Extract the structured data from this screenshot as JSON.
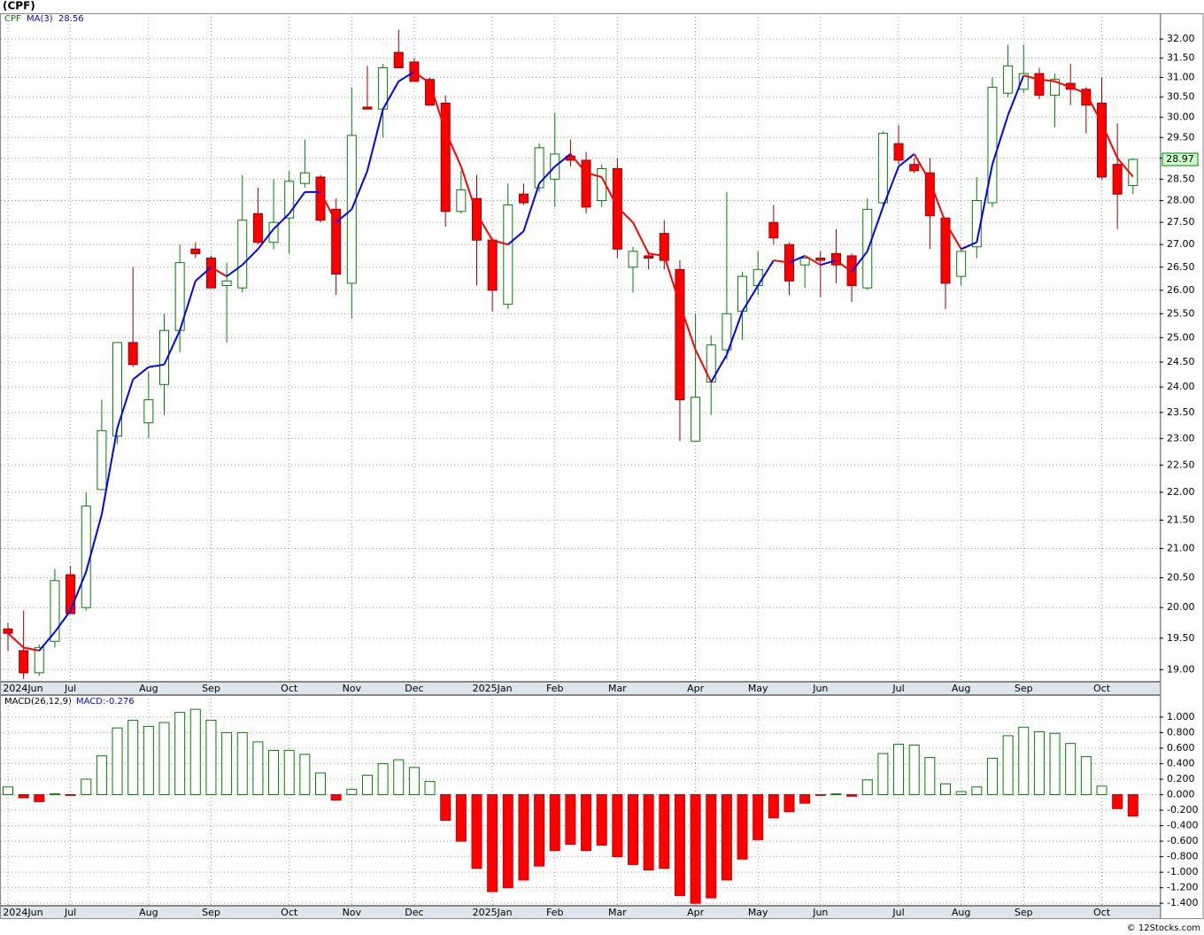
{
  "title": "(CPF)",
  "footer": "© 12Stocks.com",
  "chart_data": [
    {
      "type": "candlestick",
      "symbol": "CPF",
      "categories": [
        "2024Jun",
        null,
        null,
        null,
        "Jul",
        null,
        null,
        null,
        null,
        "Aug",
        null,
        null,
        null,
        "Sep",
        null,
        null,
        null,
        null,
        "Oct",
        null,
        null,
        null,
        "Nov",
        null,
        null,
        null,
        "Dec",
        null,
        null,
        null,
        null,
        "2025Jan",
        null,
        null,
        null,
        "Feb",
        null,
        null,
        null,
        "Mar",
        null,
        null,
        null,
        null,
        "Apr",
        null,
        null,
        null,
        "May",
        null,
        null,
        null,
        "Jun",
        null,
        null,
        null,
        null,
        "Jul",
        null,
        null,
        null,
        "Aug",
        null,
        null,
        null,
        "Sep",
        null,
        null,
        null,
        null,
        "Oct",
        null,
        null
      ],
      "open": [
        19.65,
        19.3,
        18.95,
        19.45,
        20.55,
        20.0,
        22.05,
        23.05,
        24.9,
        23.3,
        24.05,
        25.15,
        26.9,
        26.7,
        26.1,
        26.05,
        27.7,
        27.05,
        27.6,
        28.4,
        28.55,
        27.8,
        26.15,
        30.25,
        30.2,
        31.65,
        31.4,
        30.95,
        30.35,
        27.75,
        28.05,
        27.1,
        25.7,
        28.15,
        28.3,
        28.5,
        29.05,
        28.95,
        28.0,
        28.75,
        26.5,
        26.75,
        27.25,
        26.45,
        22.95,
        24.1,
        24.75,
        25.55,
        26.1,
        27.5,
        27.0,
        26.55,
        26.7,
        26.8,
        26.75,
        26.05,
        27.95,
        29.35,
        28.85,
        28.65,
        27.6,
        26.3,
        26.95,
        27.95,
        30.6,
        30.7,
        31.1,
        30.55,
        30.85,
        30.7,
        30.35,
        28.85,
        28.35
      ],
      "high": [
        19.75,
        19.95,
        19.4,
        20.65,
        20.7,
        22.0,
        23.75,
        24.9,
        26.5,
        24.3,
        25.5,
        27.0,
        27.05,
        26.75,
        26.6,
        28.6,
        28.3,
        28.5,
        28.7,
        29.45,
        28.6,
        28.05,
        30.75,
        31.3,
        31.35,
        32.25,
        31.5,
        31.0,
        30.55,
        28.7,
        28.6,
        27.15,
        28.4,
        28.4,
        29.35,
        30.1,
        29.45,
        29.15,
        28.85,
        29.0,
        26.95,
        26.85,
        27.55,
        26.65,
        25.5,
        25.05,
        28.2,
        26.4,
        26.85,
        27.9,
        27.05,
        26.7,
        26.85,
        27.35,
        26.8,
        28.05,
        29.65,
        29.8,
        29.0,
        29.0,
        27.6,
        26.95,
        28.55,
        31.0,
        31.85,
        31.85,
        31.25,
        31.1,
        31.35,
        30.75,
        31.0,
        29.85,
        29.0
      ],
      "low": [
        19.3,
        18.85,
        18.9,
        19.35,
        19.9,
        19.95,
        22.05,
        22.9,
        24.4,
        23.0,
        23.45,
        24.7,
        26.7,
        26.05,
        24.9,
        25.95,
        27.0,
        26.9,
        26.8,
        28.3,
        27.5,
        25.9,
        25.4,
        30.2,
        29.5,
        31.25,
        30.9,
        30.3,
        27.4,
        27.7,
        26.1,
        25.55,
        25.6,
        27.9,
        28.2,
        27.85,
        28.8,
        27.7,
        27.85,
        26.7,
        25.95,
        26.45,
        26.45,
        22.95,
        22.95,
        23.45,
        24.55,
        24.95,
        25.9,
        27.0,
        25.9,
        26.05,
        25.85,
        26.15,
        25.75,
        26.0,
        27.9,
        28.85,
        28.65,
        26.9,
        25.6,
        26.1,
        26.7,
        27.85,
        30.5,
        30.6,
        30.45,
        29.75,
        30.3,
        29.6,
        28.5,
        27.35,
        28.15
      ],
      "close": [
        19.58,
        18.95,
        19.35,
        20.45,
        19.9,
        21.75,
        23.15,
        24.9,
        24.45,
        23.75,
        25.15,
        26.6,
        26.8,
        26.05,
        26.2,
        27.55,
        27.05,
        27.5,
        28.45,
        28.65,
        27.55,
        26.35,
        29.55,
        30.2,
        31.25,
        31.25,
        30.9,
        30.3,
        27.75,
        28.25,
        27.1,
        26.0,
        27.9,
        27.95,
        29.25,
        29.1,
        28.95,
        27.85,
        28.75,
        26.9,
        26.85,
        26.7,
        26.65,
        23.75,
        23.8,
        24.85,
        25.5,
        26.3,
        26.45,
        27.15,
        26.2,
        26.7,
        26.65,
        26.55,
        26.1,
        27.8,
        29.6,
        28.95,
        28.7,
        27.65,
        26.15,
        26.85,
        28.0,
        30.75,
        31.3,
        31.1,
        30.55,
        30.95,
        30.7,
        30.3,
        28.55,
        28.15,
        28.97
      ],
      "up_color": "#008000",
      "down_color": "#ff0000",
      "series": [
        {
          "name": "MA(3)",
          "color": "#0000ff",
          "down_color": "#ff0000",
          "values": [
            19.58,
            19.35,
            19.3,
            19.6,
            19.95,
            20.6,
            21.6,
            23.2,
            24.15,
            24.4,
            24.45,
            25.15,
            26.2,
            26.5,
            26.3,
            26.55,
            26.9,
            27.35,
            27.7,
            28.2,
            28.2,
            27.5,
            27.8,
            28.7,
            30.2,
            30.9,
            31.15,
            30.85,
            29.65,
            28.8,
            27.7,
            27.1,
            27.0,
            27.3,
            28.4,
            28.8,
            29.1,
            28.65,
            28.55,
            27.85,
            27.5,
            26.8,
            26.75,
            25.7,
            24.75,
            24.1,
            24.65,
            25.55,
            26.1,
            26.65,
            26.6,
            26.75,
            26.55,
            26.65,
            26.4,
            26.85,
            27.85,
            28.8,
            29.1,
            28.45,
            27.5,
            26.9,
            27.05,
            28.85,
            30.05,
            31.05,
            30.95,
            30.9,
            30.75,
            30.6,
            29.85,
            29.0,
            28.56
          ]
        }
      ],
      "ma_last_label": "28.56",
      "last_label": "28.97",
      "log": true,
      "grid": true,
      "ylim": [
        18.81,
        32.69
      ],
      "yticks": [
        {
          "value": 19,
          "label": "19.00"
        },
        {
          "value": 19.5,
          "label": "19.50"
        },
        {
          "value": 20,
          "label": "20.00"
        },
        {
          "value": 20.5,
          "label": "20.50"
        },
        {
          "value": 21,
          "label": "21.00"
        },
        {
          "value": 21.5,
          "label": "21.50"
        },
        {
          "value": 22,
          "label": "22.00"
        },
        {
          "value": 22.5,
          "label": "22.50"
        },
        {
          "value": 23,
          "label": "23.00"
        },
        {
          "value": 23.5,
          "label": "23.50"
        },
        {
          "value": 24,
          "label": "24.00"
        },
        {
          "value": 24.5,
          "label": "24.50"
        },
        {
          "value": 25,
          "label": "25.00"
        },
        {
          "value": 25.5,
          "label": "25.50"
        },
        {
          "value": 26,
          "label": "26.00"
        },
        {
          "value": 26.5,
          "label": "26.50"
        },
        {
          "value": 27,
          "label": "27.00"
        },
        {
          "value": 27.5,
          "label": "27.50"
        },
        {
          "value": 28,
          "label": "28.00"
        },
        {
          "value": 28.5,
          "label": "28.50"
        },
        {
          "value": 29,
          "label": "29.00"
        },
        {
          "value": 29.5,
          "label": "29.50"
        },
        {
          "value": 30,
          "label": "30.00"
        },
        {
          "value": 30.5,
          "label": "30.50"
        },
        {
          "value": 31,
          "label": "31.00"
        },
        {
          "value": 31.5,
          "label": "31.50"
        },
        {
          "value": 32,
          "label": "32.00"
        }
      ]
    },
    {
      "type": "bar",
      "name": "MACD(26,12,9)",
      "value_label": "MACD:-0.276",
      "categories": [
        "2024Jun",
        null,
        null,
        null,
        "Jul",
        null,
        null,
        null,
        null,
        "Aug",
        null,
        null,
        null,
        "Sep",
        null,
        null,
        null,
        null,
        "Oct",
        null,
        null,
        null,
        "Nov",
        null,
        null,
        null,
        "Dec",
        null,
        null,
        null,
        null,
        "2025Jan",
        null,
        null,
        null,
        "Feb",
        null,
        null,
        null,
        "Mar",
        null,
        null,
        null,
        null,
        "Apr",
        null,
        null,
        null,
        "May",
        null,
        null,
        null,
        "Jun",
        null,
        null,
        null,
        null,
        "Jul",
        null,
        null,
        null,
        "Aug",
        null,
        null,
        null,
        "Sep",
        null,
        null,
        null,
        null,
        "Oct",
        null,
        null
      ],
      "values": [
        0.1,
        -0.04,
        -0.09,
        0.01,
        -0.01,
        0.2,
        0.5,
        0.86,
        0.96,
        0.88,
        0.93,
        1.06,
        1.1,
        0.96,
        0.8,
        0.8,
        0.68,
        0.57,
        0.57,
        0.52,
        0.28,
        -0.07,
        0.07,
        0.25,
        0.4,
        0.45,
        0.35,
        0.17,
        -0.33,
        -0.6,
        -0.95,
        -1.25,
        -1.2,
        -1.1,
        -0.92,
        -0.72,
        -0.64,
        -0.72,
        -0.65,
        -0.8,
        -0.9,
        -0.97,
        -0.95,
        -1.3,
        -1.4,
        -1.33,
        -1.1,
        -0.83,
        -0.58,
        -0.3,
        -0.22,
        -0.11,
        -0.01,
        0.01,
        -0.02,
        0.19,
        0.53,
        0.65,
        0.64,
        0.48,
        0.14,
        0.04,
        0.1,
        0.47,
        0.76,
        0.87,
        0.81,
        0.79,
        0.66,
        0.49,
        0.11,
        -0.18,
        -0.276
      ],
      "up_color": "#008000",
      "down_color": "#ff0000",
      "grid": true,
      "ylim": [
        -1.432,
        1.284
      ],
      "yticks": [
        {
          "value": 1.0,
          "label": "1.000"
        },
        {
          "value": 0.8,
          "label": "0.800"
        },
        {
          "value": 0.6,
          "label": "0.600"
        },
        {
          "value": 0.4,
          "label": "0.400"
        },
        {
          "value": 0.2,
          "label": "0.200"
        },
        {
          "value": 0,
          "label": "0.000"
        },
        {
          "value": -0.2,
          "label": "-0.200"
        },
        {
          "value": -0.4,
          "label": "-0.400"
        },
        {
          "value": -0.6,
          "label": "-0.600"
        },
        {
          "value": -0.8,
          "label": "-0.800"
        },
        {
          "value": -1.0,
          "label": "-1.000"
        },
        {
          "value": -1.2,
          "label": "-1.200"
        },
        {
          "value": -1.4,
          "label": "-1.400"
        }
      ]
    }
  ]
}
